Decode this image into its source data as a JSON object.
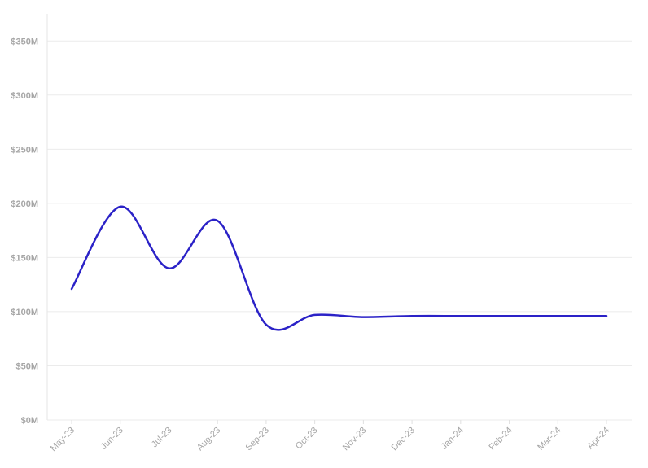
{
  "chart_data": {
    "type": "line",
    "title": "",
    "xlabel": "",
    "ylabel": "",
    "categories": [
      "May-23",
      "Jun-23",
      "Jul-23",
      "Aug-23",
      "Sep-23",
      "Oct-23",
      "Nov-23",
      "Dec-23",
      "Jan-24",
      "Feb-24",
      "Mar-24",
      "Apr-24"
    ],
    "y_tick_labels": [
      "$0M",
      "$50M",
      "$100M",
      "$150M",
      "$200M",
      "$250M",
      "$300M",
      "$350M"
    ],
    "y_ticks": [
      0,
      50,
      100,
      150,
      200,
      250,
      300,
      350
    ],
    "ylim": [
      0,
      375
    ],
    "grid": true,
    "series": [
      {
        "color": "#2b22c7",
        "values": [
          121,
          197,
          140,
          184,
          88,
          97,
          95,
          96,
          96,
          96,
          96,
          96
        ]
      }
    ]
  }
}
